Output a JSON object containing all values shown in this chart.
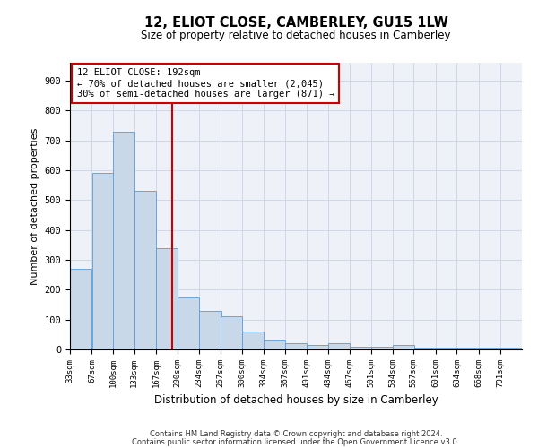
{
  "title": "12, ELIOT CLOSE, CAMBERLEY, GU15 1LW",
  "subtitle": "Size of property relative to detached houses in Camberley",
  "xlabel": "Distribution of detached houses by size in Camberley",
  "ylabel": "Number of detached properties",
  "footnote1": "Contains HM Land Registry data © Crown copyright and database right 2024.",
  "footnote2": "Contains public sector information licensed under the Open Government Licence v3.0.",
  "annotation_title": "12 ELIOT CLOSE: 192sqm",
  "annotation_line1": "← 70% of detached houses are smaller (2,045)",
  "annotation_line2": "30% of semi-detached houses are larger (871) →",
  "property_size": 192,
  "bar_color": "#c8d8e8",
  "bar_edge_color": "#5b9bd5",
  "vline_color": "#cc0000",
  "annotation_box_color": "#cc0000",
  "grid_color": "#d0d8e8",
  "background_color": "#eef2f8",
  "categories": [
    "33sqm",
    "67sqm",
    "100sqm",
    "133sqm",
    "167sqm",
    "200sqm",
    "234sqm",
    "267sqm",
    "300sqm",
    "334sqm",
    "367sqm",
    "401sqm",
    "434sqm",
    "467sqm",
    "501sqm",
    "534sqm",
    "567sqm",
    "601sqm",
    "634sqm",
    "668sqm",
    "701sqm"
  ],
  "bin_edges": [
    33,
    67,
    100,
    133,
    167,
    200,
    234,
    267,
    300,
    334,
    367,
    401,
    434,
    467,
    501,
    534,
    567,
    601,
    634,
    668,
    701
  ],
  "values": [
    270,
    590,
    730,
    530,
    340,
    175,
    130,
    110,
    60,
    30,
    20,
    15,
    20,
    10,
    10,
    15,
    5,
    5,
    5,
    5,
    5
  ],
  "ylim": [
    0,
    960
  ],
  "yticks": [
    0,
    100,
    200,
    300,
    400,
    500,
    600,
    700,
    800,
    900
  ]
}
